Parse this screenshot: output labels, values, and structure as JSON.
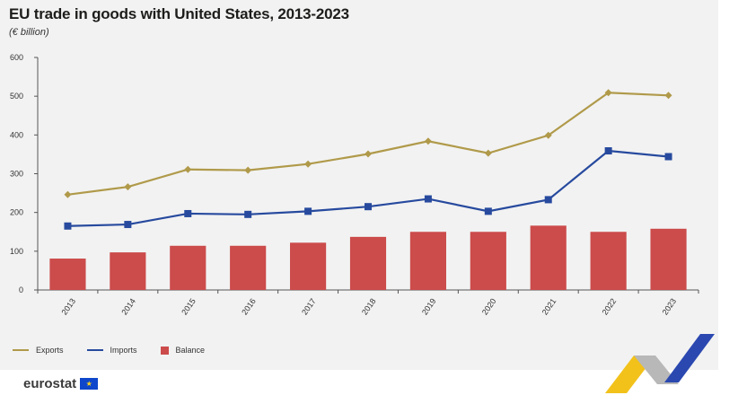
{
  "header": {
    "title": "EU trade in goods with United States, 2013-2023",
    "subtitle": "(€ billion)"
  },
  "legend": {
    "items": [
      {
        "label": "Exports",
        "color": "#b09a4a",
        "kind": "line"
      },
      {
        "label": "Imports",
        "color": "#274a9e",
        "kind": "line"
      },
      {
        "label": "Balance",
        "color": "#cc4b4b",
        "kind": "bar"
      }
    ]
  },
  "footer": {
    "brand": "eurostat",
    "flag_icon": "eu-flag-icon"
  },
  "chart_data": {
    "type": "bar+line",
    "title": "EU trade in goods with United States, 2013-2023",
    "subtitle": "(€ billion)",
    "categories": [
      "2013",
      "2014",
      "2015",
      "2016",
      "2017",
      "2018",
      "2019",
      "2020",
      "2021",
      "2022",
      "2023"
    ],
    "ylim": [
      0,
      600
    ],
    "yticks": [
      0,
      100,
      200,
      300,
      400,
      500,
      600
    ],
    "grid": false,
    "legend_position": "bottom-left",
    "series": [
      {
        "name": "Exports",
        "type": "line",
        "marker": "diamond",
        "color": "#b09a4a",
        "values": [
          246,
          266,
          311,
          309,
          325,
          351,
          384,
          353,
          399,
          509,
          502
        ]
      },
      {
        "name": "Imports",
        "type": "line",
        "marker": "square",
        "color": "#274a9e",
        "values": [
          165,
          169,
          197,
          195,
          203,
          215,
          235,
          203,
          233,
          359,
          344
        ]
      },
      {
        "name": "Balance",
        "type": "bar",
        "color": "#cc4b4b",
        "values": [
          81,
          97,
          114,
          114,
          122,
          137,
          150,
          150,
          166,
          150,
          158
        ]
      }
    ]
  }
}
